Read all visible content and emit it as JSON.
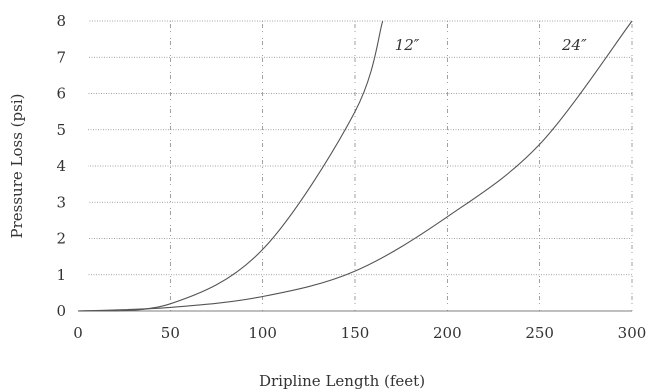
{
  "chart_data": {
    "type": "line",
    "title": "",
    "xlabel": "Dripline Length (feet)",
    "ylabel": "Pressure Loss (psi)",
    "xlim": [
      0,
      300
    ],
    "ylim": [
      0,
      8
    ],
    "xticks": [
      "0",
      "50",
      "100",
      "150",
      "200",
      "250",
      "300"
    ],
    "yticks": [
      "0",
      "1",
      "2",
      "3",
      "4",
      "5",
      "6",
      "7",
      "8"
    ],
    "grid": true,
    "series": [
      {
        "name": "12″",
        "x": [
          0,
          50,
          100,
          150,
          165
        ],
        "y": [
          0,
          0.2,
          1.7,
          5.5,
          8
        ]
      },
      {
        "name": "24″",
        "x": [
          0,
          50,
          100,
          150,
          200,
          250,
          300
        ],
        "y": [
          0,
          0.1,
          0.4,
          1.1,
          2.6,
          4.6,
          8
        ]
      }
    ]
  }
}
